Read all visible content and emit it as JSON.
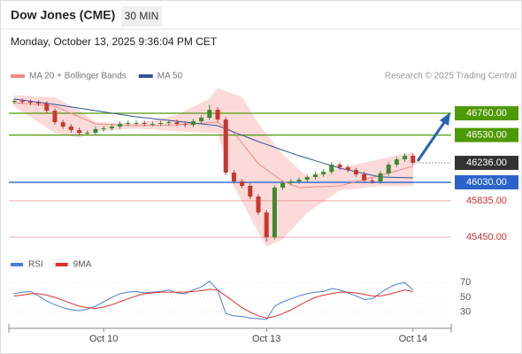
{
  "header": {
    "title": "Dow Jones (CME)",
    "timeframe": "30 MIN",
    "timestamp": "Monday, October 13, 2025 9:36:04 PM CET"
  },
  "chart_data": [
    {
      "type": "candlestick",
      "source": "Research © 2025 Trading Central",
      "categories": [
        null,
        null,
        null,
        null,
        null,
        null,
        null,
        null,
        null,
        null,
        null,
        "Oct 10",
        null,
        null,
        null,
        null,
        null,
        null,
        null,
        null,
        null,
        null,
        null,
        null,
        null,
        null,
        null,
        null,
        null,
        null,
        null,
        "Oct 13",
        null,
        null,
        null,
        null,
        null,
        null,
        null,
        null,
        null,
        null,
        null,
        null,
        null,
        null,
        null,
        null,
        null,
        "Oct 14"
      ],
      "open": [
        46880,
        46891,
        46882,
        46872,
        46863,
        46788,
        46666,
        46620,
        46582,
        46554,
        46554,
        46592,
        46601,
        46620,
        46648,
        46657,
        46657,
        46648,
        46648,
        46657,
        46666,
        46648,
        46638,
        46676,
        46713,
        46797,
        46694,
        46133,
        46040,
        45993,
        45880,
        45712,
        45450,
        45974,
        46021,
        46040,
        46058,
        46086,
        46114,
        46142,
        46217,
        46189,
        46161,
        46114,
        46049,
        46040,
        46124,
        46217,
        46273,
        46311
      ],
      "high": [
        46916,
        46916,
        46907,
        46897,
        46888,
        46813,
        46691,
        46645,
        46607,
        46579,
        46617,
        46626,
        46645,
        46673,
        46682,
        46682,
        46682,
        46673,
        46682,
        46691,
        46691,
        46673,
        46701,
        46738,
        46850,
        46822,
        46719,
        46158,
        46065,
        46018,
        45905,
        45737,
        45999,
        46046,
        46065,
        46083,
        46111,
        46139,
        46167,
        46242,
        46242,
        46214,
        46186,
        46139,
        46074,
        46149,
        46242,
        46298,
        46336,
        46336
      ],
      "low": [
        46855,
        46857,
        46847,
        46838,
        46763,
        46641,
        46595,
        46557,
        46529,
        46529,
        46529,
        46567,
        46576,
        46595,
        46623,
        46632,
        46623,
        46623,
        46623,
        46632,
        46623,
        46613,
        46613,
        46651,
        46688,
        46669,
        46108,
        46015,
        45968,
        45855,
        45687,
        45400,
        45425,
        45949,
        45996,
        46015,
        46033,
        46061,
        46089,
        46117,
        46164,
        46136,
        46089,
        46024,
        46015,
        46015,
        46099,
        46192,
        46248,
        46211
      ],
      "close": [
        46891,
        46882,
        46872,
        46863,
        46788,
        46666,
        46620,
        46582,
        46554,
        46554,
        46592,
        46601,
        46620,
        46648,
        46657,
        46657,
        46648,
        46648,
        46657,
        46666,
        46648,
        46638,
        46676,
        46713,
        46797,
        46694,
        46133,
        46040,
        45993,
        45880,
        45712,
        45450,
        45974,
        46021,
        46040,
        46058,
        46086,
        46114,
        46142,
        46217,
        46189,
        46161,
        46114,
        46049,
        46040,
        46124,
        46217,
        46273,
        46311,
        46236
      ],
      "up_color": "#3d8b2f",
      "down_color": "#c8372d",
      "series": [
        {
          "name": "MA 20 + Bollinger Bands",
          "color": "#f08a86",
          "band_color": "#fcdada",
          "values": [
            46872,
            46865,
            46857,
            46850,
            46842,
            46835,
            46798,
            46760,
            46723,
            46685,
            46648,
            46644,
            46640,
            46637,
            46633,
            46629,
            46631,
            46633,
            46634,
            46636,
            46638,
            46644,
            46649,
            46655,
            46660,
            46666,
            46610,
            46554,
            46445,
            46336,
            46227,
            46165,
            46102,
            46040,
            46007,
            45974,
            45978,
            45982,
            45985,
            45989,
            45993,
            46015,
            46038,
            46060,
            46083,
            46105,
            46129,
            46152,
            46176,
            46199
          ],
          "upper": [
            46947,
            46943,
            46939,
            46936,
            46932,
            46928,
            46881,
            46835,
            46788,
            46727,
            46666,
            46662,
            46659,
            46655,
            46652,
            46648,
            46667,
            46685,
            46704,
            46722,
            46741,
            46783,
            46826,
            46868,
            46910,
            47022,
            46991,
            46959,
            46928,
            46788,
            46648,
            46539,
            46429,
            46320,
            46242,
            46164,
            46086,
            46110,
            46133,
            46157,
            46180,
            46199,
            46217,
            46236,
            46254,
            46273,
            46292,
            46311,
            46329,
            46348
          ],
          "lower": [
            46835,
            46779,
            46723,
            46666,
            46610,
            46554,
            46538,
            46523,
            46507,
            46540,
            46573,
            46579,
            46584,
            46590,
            46595,
            46601,
            46595,
            46590,
            46584,
            46579,
            46573,
            46569,
            46565,
            46562,
            46558,
            46554,
            46274,
            45993,
            45831,
            45668,
            45506,
            45357,
            45394,
            45431,
            45525,
            45618,
            45712,
            45771,
            45829,
            45888,
            45946,
            45955,
            45965,
            45974,
            45984,
            45993,
            45993,
            45993,
            45993,
            45993
          ]
        },
        {
          "name": "MA 50",
          "color": "#2f5597",
          "values": [
            46910,
            46899,
            46888,
            46876,
            46865,
            46854,
            46841,
            46827,
            46814,
            46801,
            46788,
            46775,
            46762,
            46749,
            46736,
            46723,
            46714,
            46704,
            46695,
            46685,
            46676,
            46667,
            46657,
            46648,
            46638,
            46629,
            46595,
            46562,
            46528,
            46495,
            46461,
            46431,
            46401,
            46371,
            46341,
            46311,
            46285,
            46259,
            46232,
            46206,
            46180,
            46161,
            46142,
            46124,
            46105,
            46086,
            46084,
            46082,
            46079,
            46077
          ]
        }
      ],
      "levels": [
        {
          "value": 46760,
          "label": "46760.00",
          "color": "#4e9a06",
          "box": true
        },
        {
          "value": 46530,
          "label": "46530.00",
          "color": "#4e9a06",
          "box": true
        },
        {
          "value": 46236,
          "label": "46236.00",
          "color": "#333333",
          "box": true,
          "dotted": true
        },
        {
          "value": 46030,
          "label": "46030.00",
          "color": "#2a62c9",
          "box": true
        },
        {
          "value": 45835,
          "label": "45835.00",
          "color": "#d0312d",
          "box": false
        },
        {
          "value": 45450,
          "label": "45450.00",
          "color": "#d0312d",
          "box": false
        }
      ],
      "ylim": [
        45280,
        47040
      ]
    },
    {
      "type": "line",
      "series": [
        {
          "name": "RSI",
          "color": "#4a7fd4",
          "values": [
            55,
            57,
            58,
            52,
            45,
            40,
            36,
            33,
            32,
            34,
            38,
            44,
            50,
            55,
            57,
            58,
            56,
            57,
            58,
            60,
            56,
            55,
            60,
            64,
            72,
            60,
            28,
            25,
            24,
            22,
            21,
            20,
            38,
            44,
            48,
            52,
            55,
            57,
            58,
            62,
            60,
            56,
            52,
            47,
            48,
            56,
            63,
            68,
            70,
            60
          ]
        },
        {
          "name": "9MA",
          "color": "#e0302a",
          "values": [
            52,
            53,
            55,
            55,
            53,
            50,
            46,
            42,
            38,
            36,
            35,
            37,
            40,
            44,
            48,
            52,
            55,
            56,
            57,
            57,
            57,
            57,
            58,
            59,
            61,
            60,
            52,
            44,
            36,
            30,
            25,
            22,
            24,
            28,
            33,
            39,
            45,
            50,
            53,
            55,
            57,
            57,
            56,
            54,
            52,
            52,
            54,
            57,
            60,
            58
          ]
        }
      ],
      "ylim": [
        20,
        80
      ],
      "yticks": [
        30,
        50,
        70
      ],
      "grid": true
    }
  ]
}
